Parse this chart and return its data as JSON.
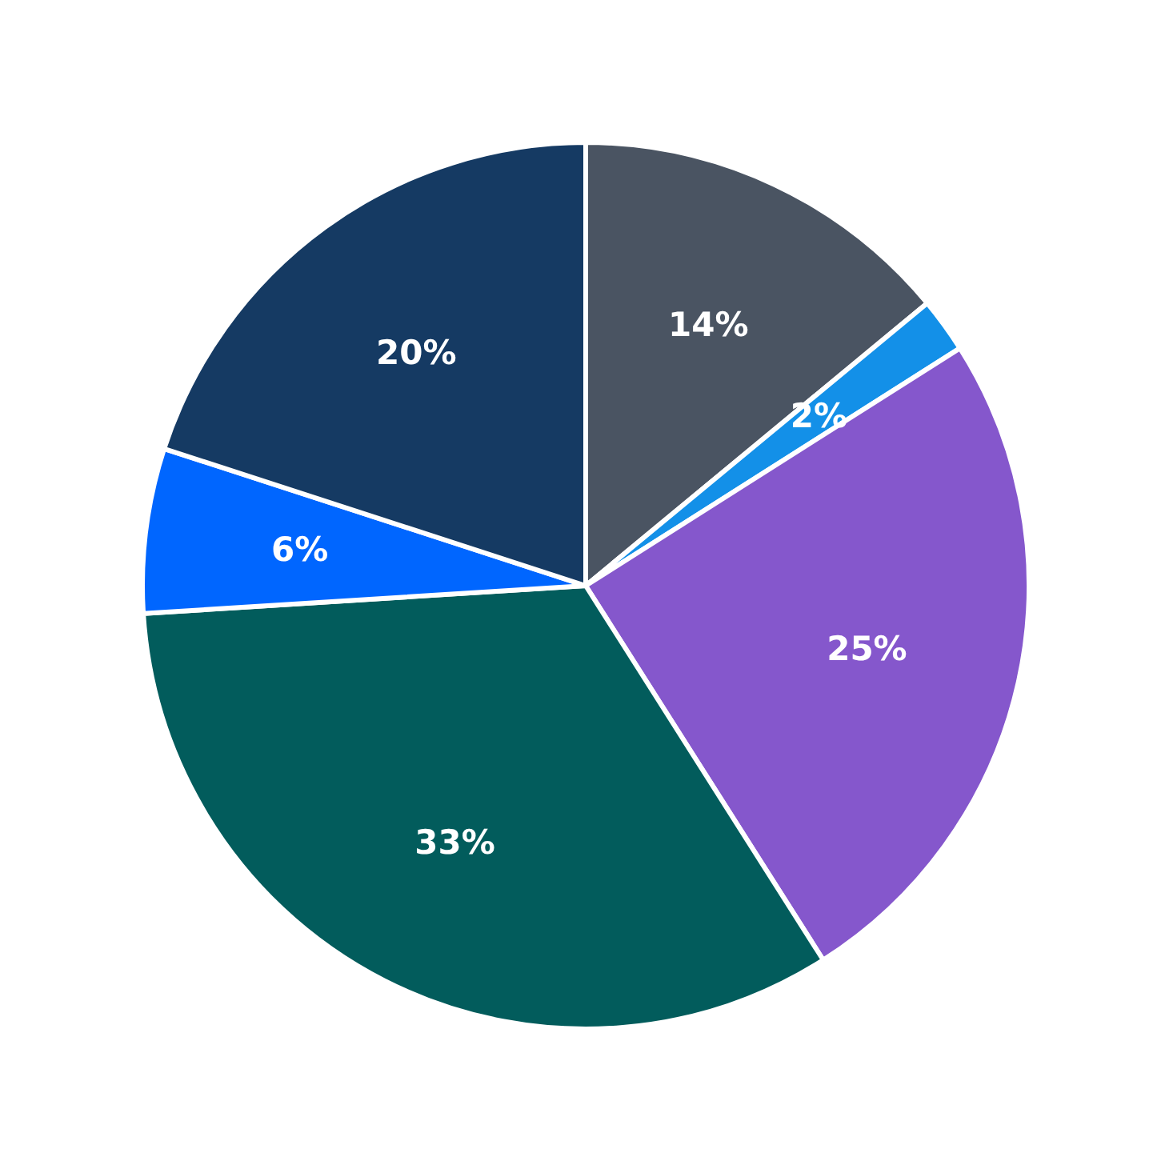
{
  "chart_data": {
    "type": "pie",
    "categories": [
      null,
      null,
      null,
      null,
      null,
      null
    ],
    "values": [
      14,
      2,
      25,
      33,
      6,
      20
    ],
    "colors": [
      "#4a5462",
      "#1390e8",
      "#8557cc",
      "#025c5c",
      "#0066ff",
      "#153a63"
    ],
    "value_labels": [
      "14%",
      "2%",
      "25%",
      "33%",
      "6%",
      "20%"
    ],
    "legend": false
  }
}
